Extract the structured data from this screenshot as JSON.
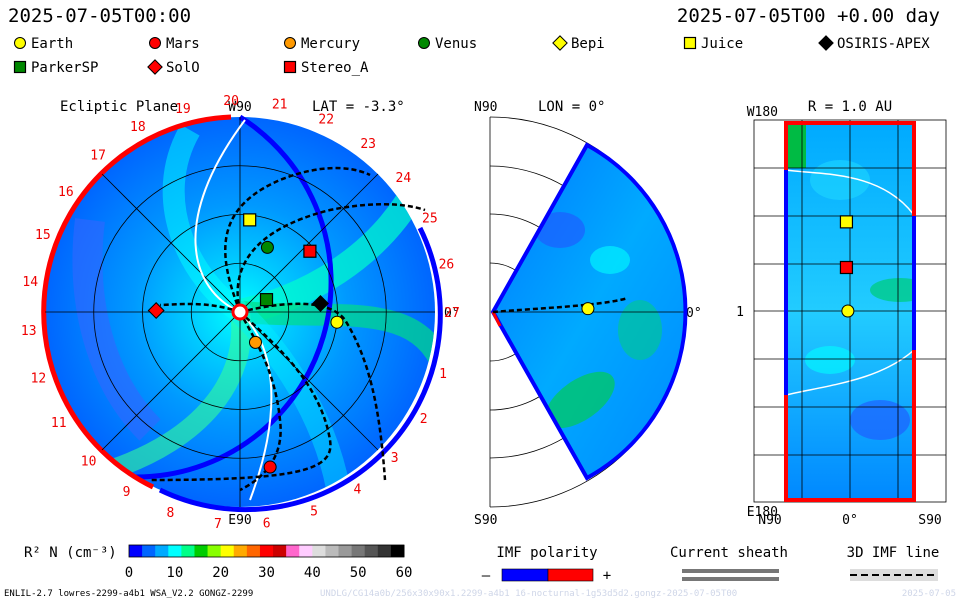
{
  "header": {
    "datetime_left": "2025-07-05T00:00",
    "datetime_right": "2025-07-05T00 +0.00 day"
  },
  "legend": [
    {
      "name": "Earth",
      "marker": "circle",
      "color": "#ffff00"
    },
    {
      "name": "Mars",
      "marker": "circle",
      "color": "#ff0000"
    },
    {
      "name": "Mercury",
      "marker": "circle",
      "color": "#ff9900"
    },
    {
      "name": "Venus",
      "marker": "circle",
      "color": "#008800"
    },
    {
      "name": "Bepi",
      "marker": "diamond",
      "color": "#ffff00"
    },
    {
      "name": "Juice",
      "marker": "square",
      "color": "#ffff00"
    },
    {
      "name": "OSIRIS-APEX",
      "marker": "diamond",
      "color": "#000000"
    },
    {
      "name": "ParkerSP",
      "marker": "square",
      "color": "#008800"
    },
    {
      "name": "SolO",
      "marker": "diamond",
      "color": "#ff0000"
    },
    {
      "name": "Stereo_A",
      "marker": "square",
      "color": "#ff0000"
    }
  ],
  "chart_data": [
    {
      "type": "heatmap",
      "panel": "ecliptic",
      "title": "Ecliptic Plane",
      "lat_label": "LAT = -3.3°",
      "top_label": "W90",
      "bottom_label": "E90",
      "right_label": "0°",
      "carrington_ticks": [
        "1",
        "2",
        "3",
        "4",
        "5",
        "6",
        "7",
        "8",
        "9",
        "10",
        "11",
        "12",
        "13",
        "14",
        "15",
        "16",
        "17",
        "18",
        "19",
        "20",
        "21",
        "22",
        "23",
        "24",
        "25",
        "26",
        "27"
      ],
      "radius_au": 2.0,
      "bodies": [
        {
          "name": "Earth",
          "r_au": 1.0,
          "lon_deg": -6
        },
        {
          "name": "Mercury",
          "r_au": 0.35,
          "lon_deg": -63
        },
        {
          "name": "Venus",
          "r_au": 0.72,
          "lon_deg": 67
        },
        {
          "name": "Mars",
          "r_au": 1.62,
          "lon_deg": -79
        },
        {
          "name": "Juice",
          "r_au": 0.95,
          "lon_deg": 84
        },
        {
          "name": "ParkerSP",
          "r_au": 0.3,
          "lon_deg": 25
        },
        {
          "name": "SolO",
          "r_au": 0.86,
          "lon_deg": 179
        },
        {
          "name": "Stereo_A",
          "r_au": 0.95,
          "lon_deg": 41
        },
        {
          "name": "OSIRIS-APEX",
          "r_au": 0.83,
          "lon_deg": 6
        }
      ]
    },
    {
      "type": "heatmap",
      "panel": "meridional",
      "lon_label": "LON = 0°",
      "top_label": "N90",
      "bottom_label": "S90",
      "right_label": "0°",
      "bodies": [
        {
          "name": "Earth",
          "r_au": 1.0,
          "lat_deg": 2
        }
      ]
    },
    {
      "type": "heatmap",
      "panel": "sky-map",
      "r_label": "R = 1.0 AU",
      "top_left_label": "W180",
      "mid_left_label": "1",
      "bottom_left_label": "E180",
      "x_ticks": [
        "N90",
        "0°",
        "S90"
      ],
      "bodies": [
        {
          "name": "Juice",
          "lat_deg": 5,
          "lon_deg": 84
        },
        {
          "name": "Stereo_A",
          "lat_deg": 5,
          "lon_deg": 41
        },
        {
          "name": "Earth",
          "lat_deg": 3,
          "lon_deg": 0
        }
      ]
    },
    {
      "type": "colorbar",
      "label": "R² N (cm⁻³)",
      "ticks": [
        "0",
        "10",
        "20",
        "30",
        "40",
        "50",
        "60"
      ],
      "range": [
        0,
        60
      ],
      "colors": [
        "#0000ff",
        "#0066ff",
        "#00aaff",
        "#00ffff",
        "#00ff88",
        "#00cc00",
        "#88ff00",
        "#ffff00",
        "#ffaa00",
        "#ff6600",
        "#ff0000",
        "#cc0000",
        "#ff66cc",
        "#ffccff",
        "#dddddd",
        "#bbbbbb",
        "#999999",
        "#777777",
        "#555555",
        "#333333",
        "#000000"
      ]
    }
  ],
  "bottom_legends": {
    "imf_polarity": "IMF polarity",
    "minus": "–",
    "plus": "+",
    "current_sheath": "Current sheath",
    "imf_line": "3D IMF line"
  },
  "footer": {
    "model": "ENLIL-2.7 lowres-2299-a4b1 WSA_V2.2 GONGZ-2299",
    "run_id": "UNDLG/CG14a0b/256x30x90x1.2299-a4b1 16-nocturnal-1g53d5d2.gongz-2025-07-05T00",
    "right": "2025-07-05"
  }
}
